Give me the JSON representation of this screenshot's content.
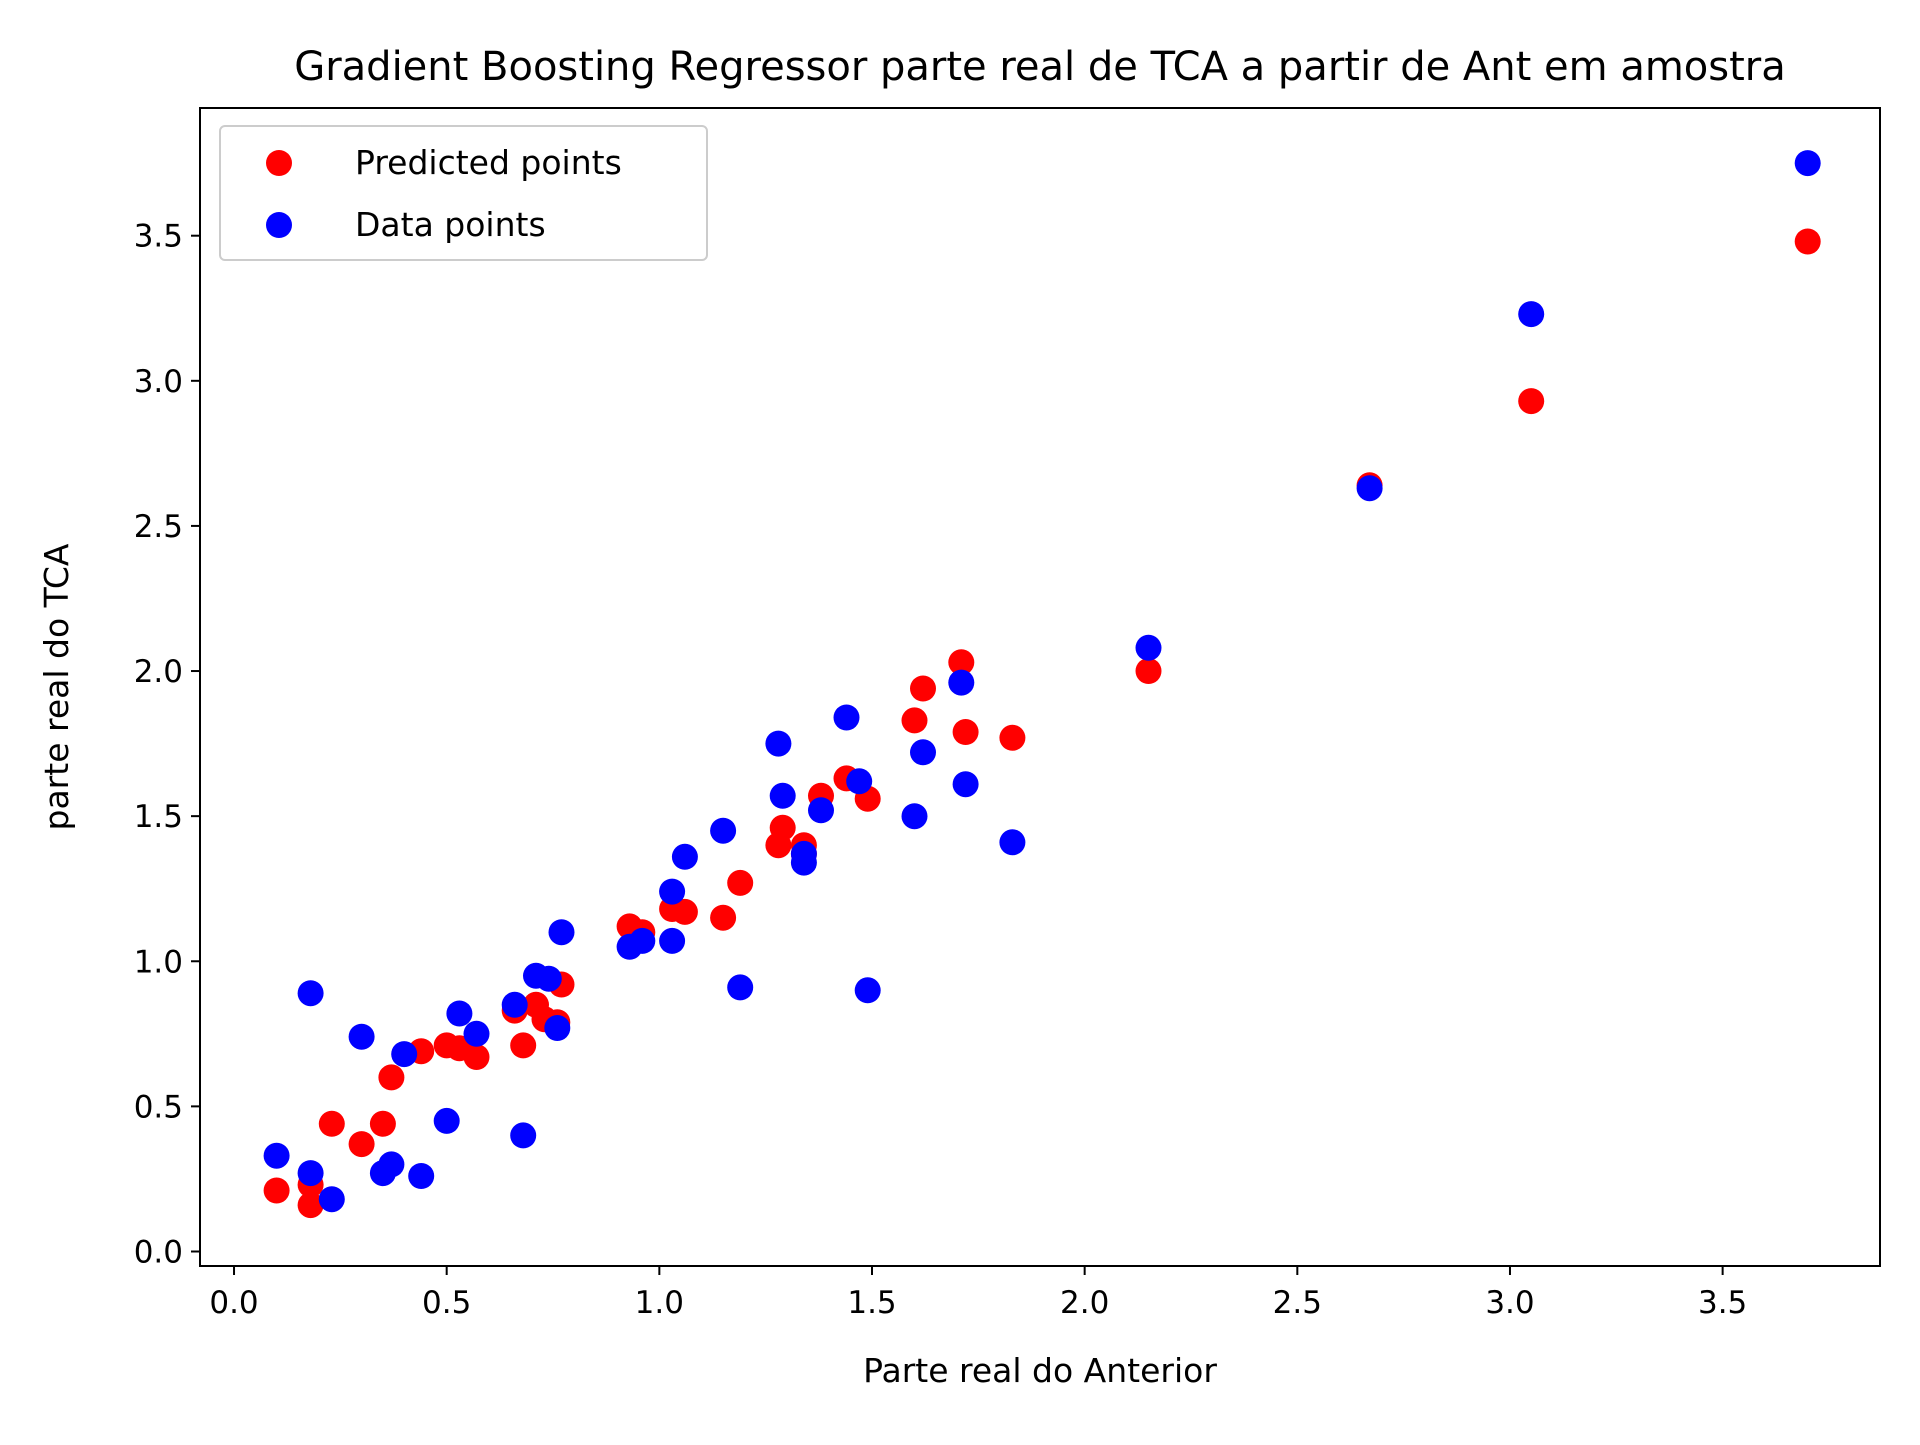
{
  "chart_data": {
    "type": "scatter",
    "title": "Gradient Boosting Regressor parte real de TCA a partir de Ant em amostra",
    "xlabel": "Parte real do Anterior",
    "ylabel": "parte real do TCA",
    "xlim": [
      -0.08,
      3.87
    ],
    "ylim": [
      -0.05,
      3.94
    ],
    "xticks": [
      0.0,
      0.5,
      1.0,
      1.5,
      2.0,
      2.5,
      3.0,
      3.5
    ],
    "yticks": [
      0.0,
      0.5,
      1.0,
      1.5,
      2.0,
      2.5,
      3.0,
      3.5
    ],
    "xtick_labels": [
      "0.0",
      "0.5",
      "1.0",
      "1.5",
      "2.0",
      "2.5",
      "3.0",
      "3.5"
    ],
    "ytick_labels": [
      "0.0",
      "0.5",
      "1.0",
      "1.5",
      "2.0",
      "2.5",
      "3.0",
      "3.5"
    ],
    "grid": false,
    "legend_position": "top-left",
    "series": [
      {
        "name": "Predicted points",
        "color": "#ff0000",
        "x": [
          0.1,
          0.18,
          0.18,
          0.23,
          0.3,
          0.35,
          0.37,
          0.44,
          0.5,
          0.53,
          0.57,
          0.66,
          0.68,
          0.71,
          0.73,
          0.76,
          0.77,
          0.93,
          0.96,
          1.03,
          1.06,
          1.15,
          1.19,
          1.28,
          1.29,
          1.34,
          1.34,
          1.38,
          1.44,
          1.49,
          1.6,
          1.62,
          1.71,
          1.72,
          1.83,
          2.15,
          2.67,
          3.05,
          3.7
        ],
        "y": [
          0.21,
          0.23,
          0.16,
          0.44,
          0.37,
          0.44,
          0.6,
          0.69,
          0.71,
          0.7,
          0.67,
          0.83,
          0.71,
          0.85,
          0.8,
          0.79,
          0.92,
          1.12,
          1.1,
          1.18,
          1.17,
          1.15,
          1.27,
          1.4,
          1.46,
          1.4,
          1.37,
          1.57,
          1.63,
          1.56,
          1.83,
          1.94,
          2.03,
          1.79,
          1.77,
          2.0,
          2.64,
          2.93,
          3.48
        ]
      },
      {
        "name": "Data points",
        "color": "#0000ff",
        "x": [
          0.1,
          0.18,
          0.18,
          0.23,
          0.3,
          0.35,
          0.37,
          0.4,
          0.44,
          0.5,
          0.53,
          0.57,
          0.66,
          0.68,
          0.71,
          0.74,
          0.76,
          0.77,
          0.93,
          0.96,
          1.03,
          1.03,
          1.06,
          1.15,
          1.19,
          1.28,
          1.29,
          1.34,
          1.34,
          1.38,
          1.44,
          1.47,
          1.49,
          1.6,
          1.62,
          1.71,
          1.72,
          1.83,
          2.15,
          2.67,
          3.05,
          3.7
        ],
        "y": [
          0.33,
          0.89,
          0.27,
          0.18,
          0.74,
          0.27,
          0.3,
          0.68,
          0.26,
          0.45,
          0.82,
          0.75,
          0.85,
          0.4,
          0.95,
          0.94,
          0.77,
          1.1,
          1.05,
          1.07,
          1.07,
          1.24,
          1.36,
          1.45,
          0.91,
          1.75,
          1.57,
          1.34,
          1.37,
          1.52,
          1.84,
          1.62,
          0.9,
          1.5,
          1.72,
          1.96,
          1.61,
          1.41,
          2.08,
          2.63,
          3.23,
          3.75
        ]
      }
    ]
  }
}
